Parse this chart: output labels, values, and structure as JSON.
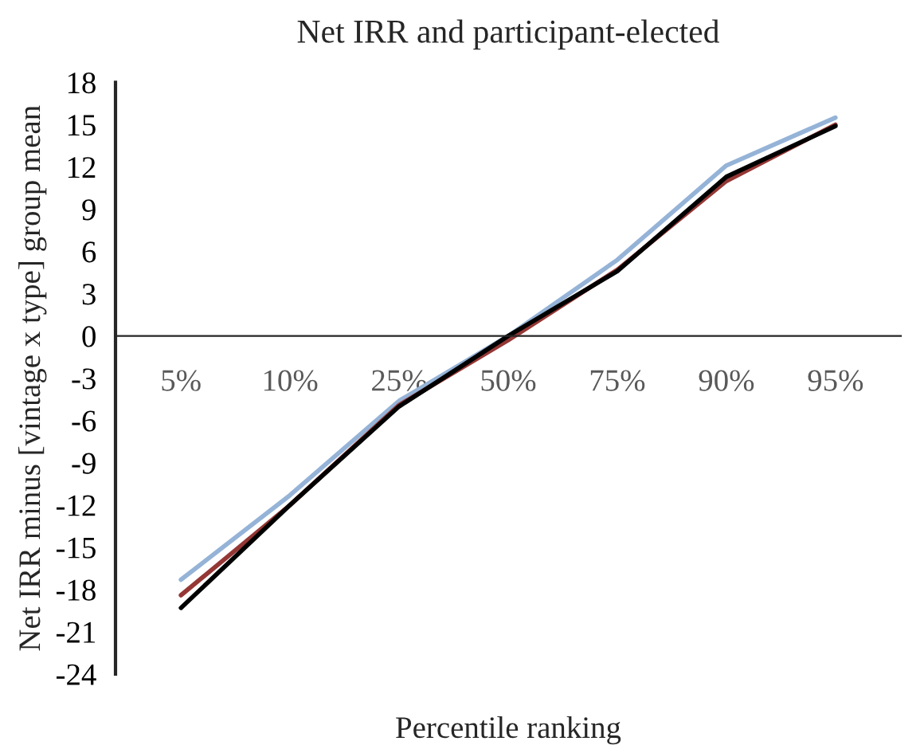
{
  "chart_data": {
    "type": "line",
    "title": "Net IRR and participant-elected",
    "xlabel": "Percentile ranking",
    "ylabel": "Net IRR minus [vintage x type] group mean",
    "categories": [
      "5%",
      "10%",
      "25%",
      "50%",
      "75%",
      "90%",
      "95%"
    ],
    "series": [
      {
        "color": "#95b3d7",
        "values": [
          -17.3,
          -11.3,
          -4.6,
          0,
          5.4,
          12.1,
          15.5
        ]
      },
      {
        "color": "#953735",
        "values": [
          -18.4,
          -12.0,
          -4.9,
          -0.3,
          4.7,
          11.0,
          15.0
        ]
      },
      {
        "color": "#000000",
        "values": [
          -19.3,
          -12.0,
          -5.0,
          0,
          4.6,
          11.3,
          14.9
        ]
      }
    ],
    "ylim": [
      -24,
      18
    ],
    "yticks": [
      -24,
      -21,
      -18,
      -15,
      -12,
      -9,
      -6,
      -3,
      0,
      3,
      6,
      9,
      12,
      15,
      18
    ],
    "grid": false,
    "legend": false,
    "marker": "none",
    "line_style": "solid"
  }
}
